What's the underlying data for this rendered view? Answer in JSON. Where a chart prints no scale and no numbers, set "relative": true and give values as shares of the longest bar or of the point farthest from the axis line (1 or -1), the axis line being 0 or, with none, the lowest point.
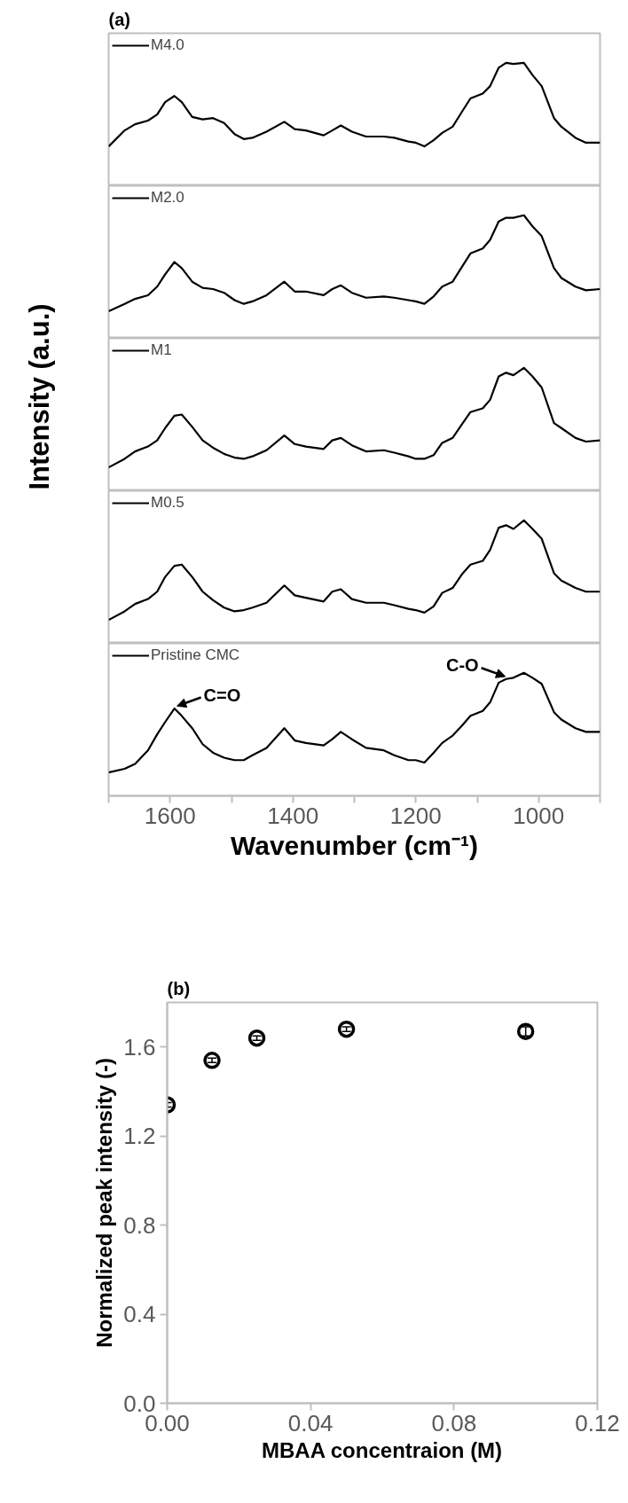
{
  "chart_data": [
    {
      "type": "line",
      "title": "(a)",
      "ylabel": "Intensity (a.u.)",
      "relative": true,
      "legend": "top left",
      "grid": false,
      "tick_labels": false,
      "xlim": [
        1700,
        900
      ],
      "x": [
        1700,
        1674,
        1657,
        1636,
        1621,
        1608,
        1593,
        1581,
        1564,
        1547,
        1530,
        1512,
        1495,
        1480,
        1466,
        1443,
        1414,
        1397,
        1379,
        1350,
        1336,
        1322,
        1304,
        1281,
        1252,
        1235,
        1212,
        1200,
        1186,
        1171,
        1157,
        1140,
        1125,
        1111,
        1091,
        1079,
        1065,
        1053,
        1041,
        1024,
        1010,
        995,
        975,
        963,
        940,
        923,
        900
      ],
      "series": [
        {
          "name": "M4.0",
          "color": "#000000",
          "values": [
            0.32,
            0.45,
            0.5,
            0.53,
            0.58,
            0.68,
            0.73,
            0.68,
            0.56,
            0.54,
            0.55,
            0.51,
            0.42,
            0.38,
            0.39,
            0.44,
            0.52,
            0.46,
            0.45,
            0.41,
            0.45,
            0.49,
            0.44,
            0.4,
            0.4,
            0.39,
            0.36,
            0.35,
            0.32,
            0.37,
            0.43,
            0.48,
            0.6,
            0.71,
            0.75,
            0.81,
            0.96,
            1.0,
            0.99,
            1.0,
            0.9,
            0.81,
            0.55,
            0.48,
            0.39,
            0.35,
            0.35
          ]
        }
      ]
    },
    {
      "type": "line",
      "relative": true,
      "legend": "top left",
      "grid": false,
      "tick_labels": false,
      "xlim": [
        1700,
        900
      ],
      "x": [
        1700,
        1674,
        1657,
        1636,
        1621,
        1608,
        1593,
        1581,
        1564,
        1547,
        1530,
        1512,
        1495,
        1480,
        1466,
        1443,
        1414,
        1397,
        1379,
        1350,
        1336,
        1322,
        1304,
        1281,
        1252,
        1235,
        1212,
        1200,
        1186,
        1171,
        1157,
        1140,
        1125,
        1111,
        1091,
        1079,
        1065,
        1053,
        1041,
        1024,
        1010,
        995,
        975,
        963,
        940,
        923,
        900
      ],
      "series": [
        {
          "name": "M2.0",
          "color": "#000000",
          "values": [
            0.22,
            0.28,
            0.32,
            0.35,
            0.42,
            0.52,
            0.62,
            0.57,
            0.46,
            0.41,
            0.4,
            0.37,
            0.31,
            0.28,
            0.3,
            0.35,
            0.46,
            0.38,
            0.38,
            0.35,
            0.4,
            0.43,
            0.37,
            0.33,
            0.34,
            0.33,
            0.31,
            0.3,
            0.28,
            0.34,
            0.42,
            0.46,
            0.58,
            0.69,
            0.73,
            0.8,
            0.95,
            0.98,
            0.98,
            1.0,
            0.91,
            0.83,
            0.57,
            0.49,
            0.42,
            0.39,
            0.4
          ]
        }
      ]
    },
    {
      "type": "line",
      "relative": true,
      "legend": "top left",
      "grid": false,
      "tick_labels": false,
      "xlim": [
        1700,
        900
      ],
      "x": [
        1700,
        1674,
        1657,
        1636,
        1621,
        1608,
        1593,
        1581,
        1564,
        1547,
        1530,
        1512,
        1495,
        1480,
        1466,
        1443,
        1414,
        1397,
        1379,
        1350,
        1336,
        1322,
        1304,
        1281,
        1252,
        1235,
        1212,
        1200,
        1186,
        1171,
        1157,
        1140,
        1125,
        1111,
        1091,
        1079,
        1065,
        1053,
        1041,
        1024,
        1010,
        995,
        975,
        963,
        940,
        923,
        900
      ],
      "series": [
        {
          "name": "M1",
          "color": "#000000",
          "values": [
            0.19,
            0.26,
            0.32,
            0.36,
            0.41,
            0.51,
            0.61,
            0.62,
            0.52,
            0.41,
            0.35,
            0.3,
            0.27,
            0.26,
            0.28,
            0.33,
            0.45,
            0.38,
            0.36,
            0.34,
            0.41,
            0.43,
            0.37,
            0.32,
            0.33,
            0.31,
            0.28,
            0.26,
            0.26,
            0.29,
            0.39,
            0.43,
            0.54,
            0.64,
            0.67,
            0.74,
            0.93,
            0.96,
            0.94,
            1.0,
            0.93,
            0.84,
            0.55,
            0.51,
            0.43,
            0.4,
            0.41
          ]
        }
      ]
    },
    {
      "type": "line",
      "relative": true,
      "legend": "top left",
      "grid": false,
      "tick_labels": false,
      "xlim": [
        1700,
        900
      ],
      "x": [
        1700,
        1674,
        1657,
        1636,
        1621,
        1608,
        1593,
        1581,
        1564,
        1547,
        1530,
        1512,
        1495,
        1480,
        1466,
        1443,
        1414,
        1397,
        1379,
        1350,
        1336,
        1322,
        1304,
        1281,
        1252,
        1235,
        1212,
        1200,
        1186,
        1171,
        1157,
        1140,
        1125,
        1111,
        1091,
        1079,
        1065,
        1053,
        1041,
        1024,
        1010,
        995,
        975,
        963,
        940,
        923,
        900
      ],
      "series": [
        {
          "name": "M0.5",
          "color": "#000000",
          "values": [
            0.19,
            0.26,
            0.32,
            0.36,
            0.42,
            0.54,
            0.63,
            0.64,
            0.54,
            0.42,
            0.35,
            0.29,
            0.26,
            0.27,
            0.29,
            0.33,
            0.47,
            0.39,
            0.37,
            0.34,
            0.42,
            0.44,
            0.36,
            0.33,
            0.33,
            0.31,
            0.28,
            0.27,
            0.25,
            0.3,
            0.41,
            0.45,
            0.56,
            0.64,
            0.67,
            0.76,
            0.94,
            0.96,
            0.93,
            1.0,
            0.93,
            0.85,
            0.57,
            0.51,
            0.45,
            0.42,
            0.42
          ]
        }
      ]
    },
    {
      "type": "line",
      "xlabel": "Wavenumber (cm⁻¹)",
      "relative": true,
      "legend": "top left",
      "grid": false,
      "tick_labels": "x",
      "xlim": [
        1700,
        900
      ],
      "xticks": [
        {
          "value": 1700,
          "label": null
        },
        1600,
        {
          "value": 1500,
          "label": null
        },
        1400,
        {
          "value": 1300,
          "label": null
        },
        1200,
        {
          "value": 1100,
          "label": null
        },
        1000,
        {
          "value": 900,
          "label": null
        }
      ],
      "x": [
        1700,
        1674,
        1657,
        1636,
        1621,
        1608,
        1593,
        1581,
        1564,
        1547,
        1530,
        1512,
        1495,
        1480,
        1466,
        1443,
        1414,
        1397,
        1379,
        1350,
        1336,
        1322,
        1304,
        1281,
        1252,
        1235,
        1212,
        1200,
        1186,
        1171,
        1157,
        1140,
        1125,
        1111,
        1091,
        1079,
        1065,
        1053,
        1041,
        1024,
        1010,
        995,
        975,
        963,
        940,
        923,
        900
      ],
      "series": [
        {
          "name": "Pristine CMC",
          "color": "#000000",
          "values": [
            0.19,
            0.22,
            0.26,
            0.37,
            0.5,
            0.6,
            0.71,
            0.65,
            0.55,
            0.42,
            0.35,
            0.31,
            0.29,
            0.29,
            0.33,
            0.39,
            0.55,
            0.45,
            0.43,
            0.41,
            0.46,
            0.52,
            0.46,
            0.39,
            0.37,
            0.33,
            0.29,
            0.29,
            0.27,
            0.35,
            0.43,
            0.49,
            0.57,
            0.65,
            0.69,
            0.76,
            0.92,
            0.95,
            0.96,
            1.0,
            0.96,
            0.91,
            0.68,
            0.62,
            0.55,
            0.52,
            0.52
          ]
        }
      ],
      "annotations": [
        {
          "text": "C=O",
          "x": 1593,
          "y": 0.71
        },
        {
          "text": "C-O",
          "x": 1050,
          "y": 0.95
        }
      ]
    },
    {
      "type": "scatter",
      "title": "(b)",
      "xlabel": "MBAA concentraion (M)",
      "ylabel": "Normalized peak intensity (-)",
      "marker": "circle",
      "grid": false,
      "color": "#000000",
      "x": [
        0,
        0.0125,
        0.025,
        0.05,
        0.1
      ],
      "values": [
        1.34,
        1.54,
        1.64,
        1.68,
        1.67
      ],
      "errors": [
        0.01,
        0.01,
        0.01,
        0.01,
        0.02
      ],
      "xlim": [
        0,
        0.12
      ],
      "xticks": [
        {
          "value": 0,
          "label": "0.00"
        },
        0.04,
        0.08,
        0.12
      ],
      "ylim": [
        0,
        1.8
      ],
      "yticks": [
        {
          "value": 0,
          "label": "0.0"
        },
        0.4,
        0.8,
        1.2,
        1.6
      ]
    }
  ]
}
